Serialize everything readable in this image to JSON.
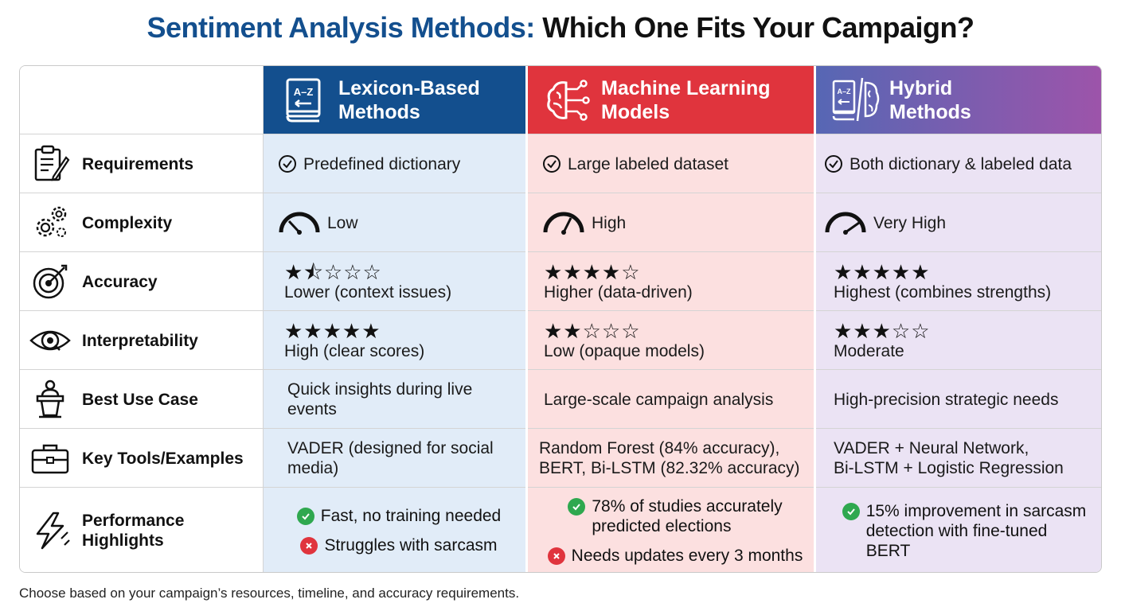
{
  "title": {
    "part1": "Sentiment Analysis Methods:",
    "part2": "Which One Fits Your Campaign?"
  },
  "columns": {
    "lexicon": {
      "line1": "Lexicon-Based",
      "line2": "Methods",
      "color": "#134f8e"
    },
    "ml": {
      "line1": "Machine Learning",
      "line2": "Models",
      "color": "#e0343d"
    },
    "hybrid": {
      "line1": "Hybrid",
      "line2": "Methods",
      "color": "#7a5caf"
    }
  },
  "rows": {
    "requirements": {
      "label": "Requirements",
      "icon": "clipboard-icon",
      "lexicon": "Predefined dictionary",
      "ml": "Large labeled dataset",
      "hybrid": "Both dictionary & labeled data"
    },
    "complexity": {
      "label": "Complexity",
      "icon": "gears-icon",
      "lexicon": "Low",
      "ml": "High",
      "hybrid": "Very High"
    },
    "accuracy": {
      "label": "Accuracy",
      "icon": "target-icon",
      "lexicon_stars": "★⯪☆☆☆",
      "lexicon": "Lower (context issues)",
      "ml_stars": "★★★★☆",
      "ml": "Higher (data-driven)",
      "hybrid_stars": "★★★★★",
      "hybrid": "Highest (combines strengths)"
    },
    "interpretability": {
      "label": "Interpretability",
      "icon": "eye-icon",
      "lexicon_stars": "★★★★★",
      "lexicon": "High (clear scores)",
      "ml_stars": "★★☆☆☆",
      "ml": "Low (opaque models)",
      "hybrid_stars": "★★★☆☆",
      "hybrid": "Moderate"
    },
    "best_use": {
      "label": "Best Use Case",
      "icon": "podium-icon",
      "lexicon_l1": "Quick insights during live",
      "lexicon_l2": "events",
      "ml": "Large-scale campaign analysis",
      "hybrid": "High-precision strategic needs"
    },
    "tools": {
      "label": "Key Tools/Examples",
      "icon": "toolbox-icon",
      "lexicon_l1": "VADER (designed for social",
      "lexicon_l2": "media)",
      "ml_l1": "Random Forest (84% accuracy),",
      "ml_l2": "BERT, Bi-LSTM (82.32% accuracy)",
      "hybrid_l1": "VADER + Neural Network,",
      "hybrid_l2": "Bi-LSTM + Logistic Regression"
    },
    "performance": {
      "label_l1": "Performance",
      "label_l2": "Highlights",
      "icon": "lightning-icon",
      "lexicon_pro": "Fast, no training needed",
      "lexicon_con": "Struggles with sarcasm",
      "ml_pro_l1": "78% of studies accurately",
      "ml_pro_l2": "predicted elections",
      "ml_con": "Needs updates every 3 months",
      "hybrid_pro_l1": "15% improvement in sarcasm",
      "hybrid_pro_l2": "detection with fine-tuned",
      "hybrid_pro_l3": "BERT"
    }
  },
  "footnote": "Choose based on your campaign’s resources, timeline, and accuracy requirements."
}
